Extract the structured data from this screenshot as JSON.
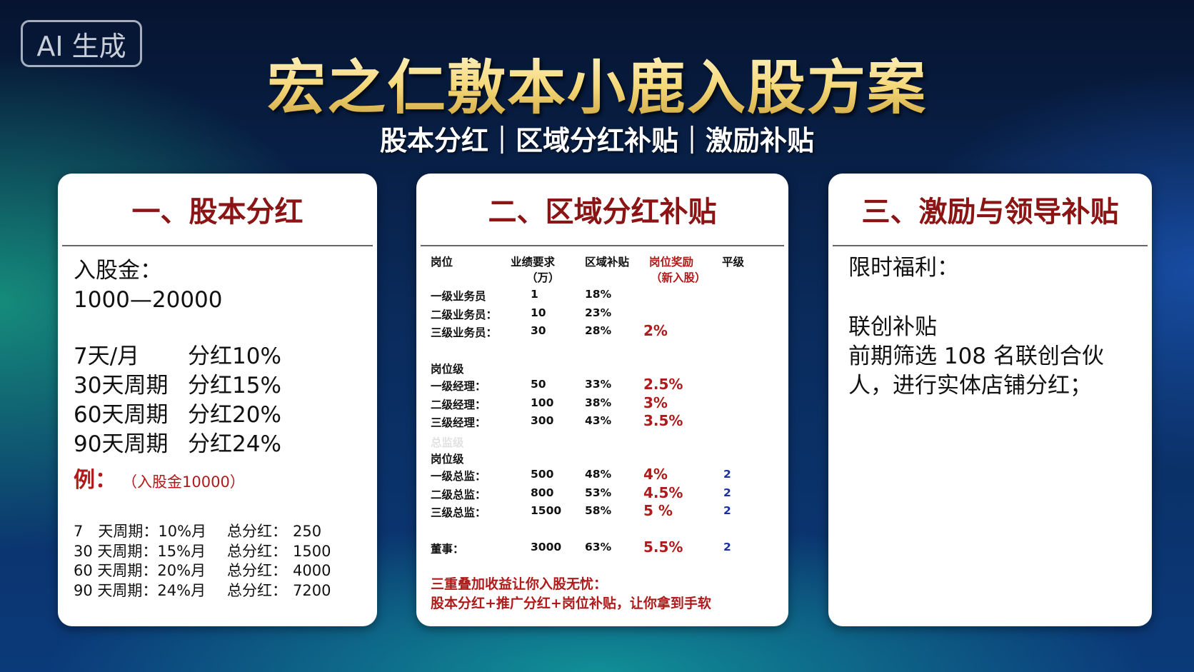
{
  "badge": "AI 生成",
  "header": {
    "title": "宏之仁敷本小鹿入股方案",
    "subtitle": "股本分红｜区域分红补贴｜激励补贴"
  },
  "panel1": {
    "heading": "一、股本分红",
    "amount_label": "入股金：",
    "amount_range": "1000—20000",
    "plans": [
      [
        "7天/月",
        "分红10%"
      ],
      [
        "30天周期",
        "分红15%"
      ],
      [
        "60天周期",
        "分红20%"
      ],
      [
        "90天周期",
        "分红24%"
      ]
    ],
    "example_label": "例：",
    "example_note": "（入股金10000）",
    "examples": [
      [
        "7　天周期：10%月",
        "总分红：",
        "250"
      ],
      [
        "30 天周期：15%月",
        "总分红：",
        "1500"
      ],
      [
        "60 天周期：20%月",
        "总分红：",
        "4000"
      ],
      [
        "90 天周期：24%月",
        "总分红：",
        "7200"
      ]
    ]
  },
  "panel2": {
    "heading": "二、区域分红补贴",
    "columns": [
      [
        "岗位"
      ],
      [
        "业绩要求",
        "（万）"
      ],
      [
        "区域补贴"
      ],
      [
        "岗位奖励",
        "（新入股）"
      ],
      [
        "平级"
      ]
    ],
    "groups": [
      {
        "rows": [
          {
            "position": "一级业务员",
            "requirement": "1",
            "subsidy": "18%"
          },
          {
            "position": "二级业务员：",
            "requirement": "10",
            "subsidy": "23%"
          },
          {
            "position": "三级业务员：",
            "requirement": "30",
            "subsidy": "28%",
            "reward": "2%"
          }
        ]
      },
      {
        "label": "岗位级",
        "rows": [
          {
            "position": "一级经理：",
            "requirement": "50",
            "subsidy": "33%",
            "reward": "2.5%"
          },
          {
            "position": "二级经理：",
            "requirement": "100",
            "subsidy": "38%",
            "reward": "3%"
          },
          {
            "position": "三级经理：",
            "requirement": "300",
            "subsidy": "43%",
            "reward": "3.5%"
          }
        ]
      },
      {
        "faint_label": "总监级",
        "label": "岗位级",
        "rows": [
          {
            "position": "一级总监：",
            "requirement": "500",
            "subsidy": "48%",
            "reward": "4%",
            "level": "2"
          },
          {
            "position": "二级总监：",
            "requirement": "800",
            "subsidy": "53%",
            "reward": "4.5%",
            "level": "2"
          },
          {
            "position": "三级总监：",
            "requirement": "1500",
            "subsidy": "58%",
            "reward": "5 %",
            "level": "2"
          }
        ]
      },
      {
        "rows": [
          {
            "position": "董事：",
            "requirement": "3000",
            "subsidy": "63%",
            "reward": "5.5%",
            "level": "2"
          }
        ]
      }
    ],
    "footer": [
      "三重叠加收益让你入股无忧：",
      "股本分红+推广分红+岗位补贴，让你拿到手软"
    ]
  },
  "panel3": {
    "heading": "三、激励与领导补贴",
    "benefit_label": "限时福利：",
    "item_title": "联创补贴",
    "item_text": "前期筛选 108 名联创合伙人，进行实体店铺分红；"
  }
}
